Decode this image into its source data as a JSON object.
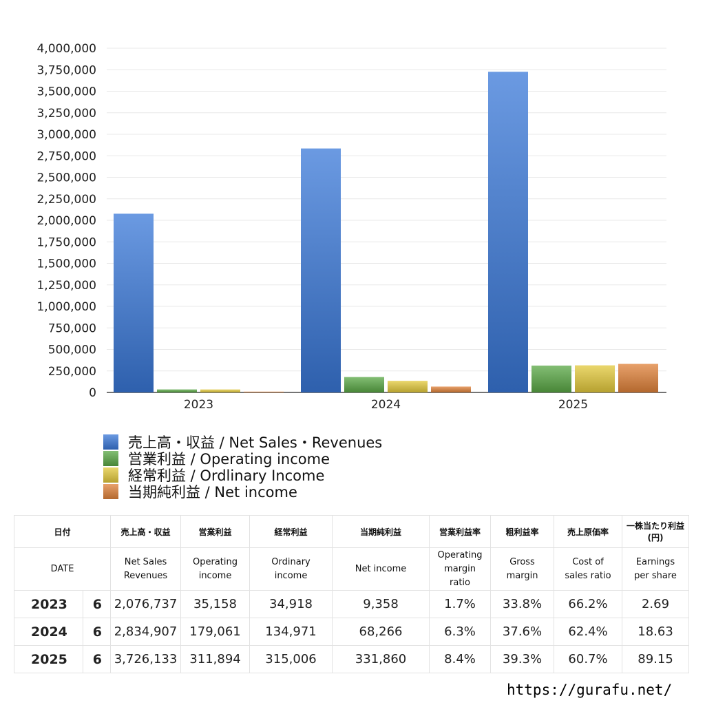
{
  "chart_data": {
    "type": "bar",
    "categories": [
      "2023",
      "2024",
      "2025"
    ],
    "ylim": [
      0,
      4000000
    ],
    "yticks": [
      "0",
      "250,000",
      "500,000",
      "750,000",
      "1,000,000",
      "1,250,000",
      "1,500,000",
      "1,750,000",
      "2,000,000",
      "2,250,000",
      "2,500,000",
      "2,750,000",
      "3,000,000",
      "3,250,000",
      "3,500,000",
      "3,750,000",
      "4,000,000"
    ],
    "grid": true,
    "legend_placement": "bottom-left",
    "series": [
      {
        "name": "売上高・収益 / Net Sales・Revenues",
        "values": [
          2076737,
          2834907,
          3726133
        ],
        "color": "#3a78d8"
      },
      {
        "name": "営業利益 / Operating income",
        "values": [
          35158,
          179061,
          311894
        ],
        "color": "#5aa845"
      },
      {
        "name": "経常利益 / Ordlinary Income",
        "values": [
          34918,
          134971,
          315006
        ],
        "color": "#e3c93c"
      },
      {
        "name": "当期純利益 / Net income",
        "values": [
          9358,
          68266,
          331860
        ],
        "color": "#e0823a"
      }
    ]
  },
  "table": {
    "header_jp": [
      "日付",
      "売上高・収益",
      "営業利益",
      "経常利益",
      "当期純利益",
      "営業利益率",
      "粗利益率",
      "売上原価率",
      "一株当たり利益\n(円)"
    ],
    "header_en": [
      "DATE",
      "Net Sales\nRevenues",
      "Operating\nincome",
      "Ordinary\nincome",
      "Net income",
      "Operating\nmargin\nratio",
      "Gross\nmargin",
      "Cost of\nsales ratio",
      "Earnings\nper share"
    ],
    "rows": [
      [
        "2023",
        "6",
        "2,076,737",
        "35,158",
        "34,918",
        "9,358",
        "1.7%",
        "33.8%",
        "66.2%",
        "2.69"
      ],
      [
        "2024",
        "6",
        "2,834,907",
        "179,061",
        "134,971",
        "68,266",
        "6.3%",
        "37.6%",
        "62.4%",
        "18.63"
      ],
      [
        "2025",
        "6",
        "3,726,133",
        "311,894",
        "315,006",
        "331,860",
        "8.4%",
        "39.3%",
        "60.7%",
        "89.15"
      ]
    ]
  },
  "footer": {
    "site": "https://gurafu.net/"
  }
}
